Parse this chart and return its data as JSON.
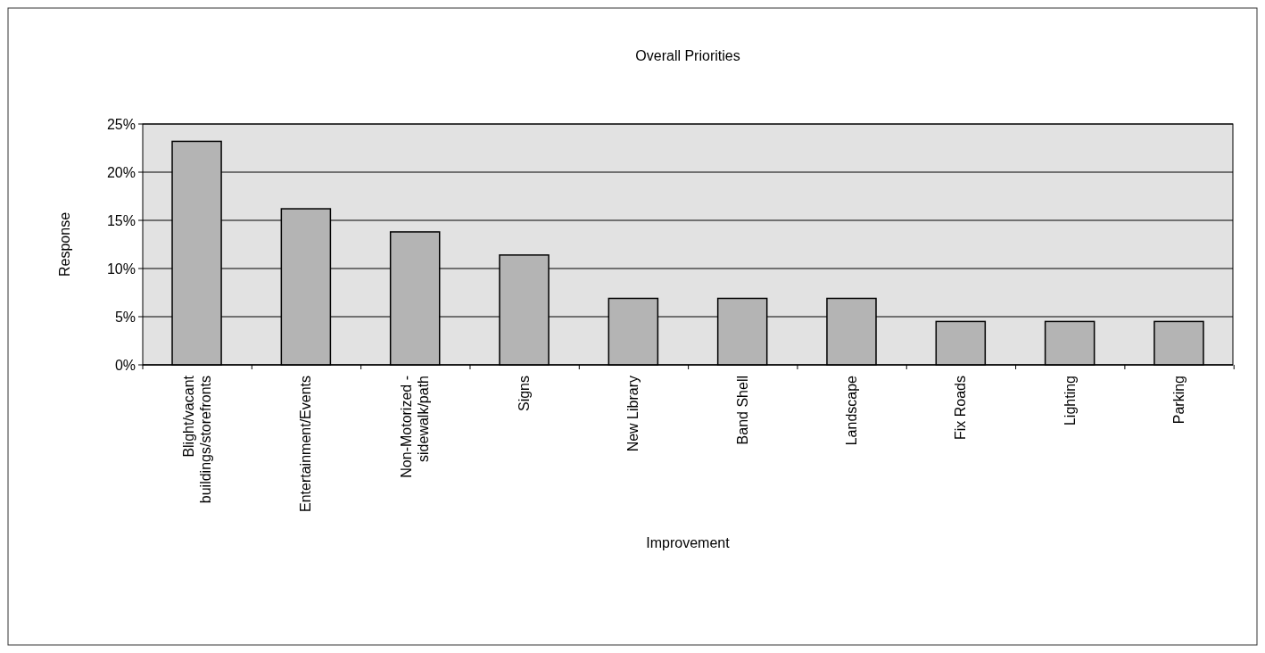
{
  "chart_data": {
    "type": "bar",
    "title": "Overall Priorities",
    "xlabel": "Improvement",
    "ylabel": "Response",
    "categories": [
      "Blight/vacant\nbuildings/storefronts",
      "Entertainment/Events",
      "Non-Motorized -\nsidewalk/path",
      "Signs",
      "New Library",
      "Band Shell",
      "Landscape",
      "Fix Roads",
      "Lighting",
      "Parking"
    ],
    "values": [
      23.2,
      16.2,
      13.8,
      11.4,
      6.9,
      6.9,
      6.9,
      4.5,
      4.5,
      4.5
    ],
    "color": "#b4b4b4",
    "ylim": [
      0,
      25
    ],
    "yticks": [
      {
        "value": 0,
        "label": "0%"
      },
      {
        "value": 5,
        "label": "5%"
      },
      {
        "value": 10,
        "label": "10%"
      },
      {
        "value": 15,
        "label": "15%"
      },
      {
        "value": 20,
        "label": "20%"
      },
      {
        "value": 25,
        "label": "25%"
      }
    ],
    "grid": "y"
  }
}
